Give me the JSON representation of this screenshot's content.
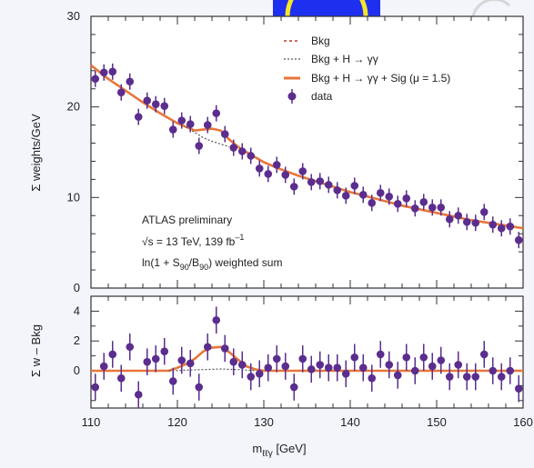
{
  "colors": {
    "data_marker": "#5b2d8e",
    "signal_fit": "#e8763a",
    "background_fit": "#c0392b",
    "higgs_fit": "#555555",
    "logo_blue": "#1f2ff0",
    "logo_yellow": "#f5e626"
  },
  "chart_data": [
    {
      "type": "scatter",
      "panel": "main",
      "ylabel": "Σ weights/GeV",
      "xlabel": "",
      "xlim": [
        110,
        160
      ],
      "ylim": [
        0,
        30
      ],
      "x_ticks": [
        "110",
        "120",
        "130",
        "140",
        "150",
        "160"
      ],
      "y_ticks": [
        "0",
        "10",
        "20",
        "30"
      ],
      "legend": {
        "placement": "top-right",
        "entries": [
          "Bkg",
          "Bkg + H → γγ",
          "Bkg + H → γγ + Sig (μ = 1.5)",
          "data"
        ]
      },
      "annotations": [
        "ATLAS preliminary",
        "√s = 13 TeV, 139 fb",
        "–1",
        "ln(1 + S",
        "90",
        "/B",
        "90",
        ") weighted sum"
      ],
      "series": [
        {
          "name": "data",
          "x": [
            110.5,
            111.5,
            112.5,
            113.5,
            114.5,
            115.5,
            116.5,
            117.5,
            118.5,
            119.5,
            120.5,
            121.5,
            122.5,
            123.5,
            124.5,
            125.5,
            126.5,
            127.5,
            128.5,
            129.5,
            130.5,
            131.5,
            132.5,
            133.5,
            134.5,
            135.5,
            136.5,
            137.5,
            138.5,
            139.5,
            140.5,
            141.5,
            142.5,
            143.5,
            144.5,
            145.5,
            146.5,
            147.5,
            148.5,
            149.5,
            150.5,
            151.5,
            152.5,
            153.5,
            154.5,
            155.5,
            156.5,
            157.5,
            158.5,
            159.5
          ],
          "y": [
            23.1,
            23.8,
            23.9,
            21.6,
            22.8,
            18.9,
            20.7,
            20.3,
            20.1,
            17.5,
            18.5,
            18.1,
            15.7,
            18.0,
            19.3,
            17.0,
            15.5,
            15.1,
            14.6,
            13.2,
            12.6,
            13.6,
            12.5,
            11.2,
            12.9,
            11.7,
            11.8,
            11.4,
            10.8,
            10.2,
            11.3,
            10.3,
            9.4,
            10.5,
            10.1,
            9.3,
            9.9,
            8.8,
            9.5,
            8.9,
            8.9,
            7.6,
            8.0,
            7.3,
            7.2,
            8.4,
            7.0,
            6.6,
            6.8,
            5.3
          ],
          "yerr": 0.9
        },
        {
          "name": "Bkg + H → γγ + Sig (μ = 1.5)",
          "x": [
            110,
            112,
            114,
            116,
            118,
            120,
            121,
            122,
            123,
            124,
            125,
            126,
            127,
            128,
            130,
            132,
            134,
            136,
            138,
            140,
            142,
            144,
            146,
            148,
            150,
            152,
            154,
            156,
            158,
            160
          ],
          "y": [
            24.6,
            23.1,
            21.8,
            20.5,
            19.3,
            18.2,
            17.8,
            17.4,
            17.5,
            17.6,
            17.4,
            16.4,
            15.6,
            15.0,
            13.9,
            13.1,
            12.4,
            11.8,
            11.2,
            10.6,
            10.1,
            9.6,
            9.1,
            8.7,
            8.3,
            7.9,
            7.5,
            7.2,
            6.9,
            6.6
          ]
        },
        {
          "name": "Bkg + H → γγ",
          "x": [
            121,
            122,
            123,
            124,
            125,
            126
          ],
          "y": [
            17.8,
            17.2,
            16.6,
            16.2,
            15.9,
            15.6
          ]
        }
      ]
    },
    {
      "type": "scatter",
      "panel": "residual",
      "ylabel": "Σ w – Bkg",
      "xlabel": "m",
      "xlabel_sub": "ℓℓγ",
      "xlabel_unit": " [GeV]",
      "xlim": [
        110,
        160
      ],
      "ylim": [
        -2.5,
        5
      ],
      "x_ticks": [
        "110",
        "120",
        "130",
        "140",
        "150",
        "160"
      ],
      "y_ticks": [
        "0",
        "2",
        "4"
      ],
      "series": [
        {
          "name": "data",
          "x": [
            110.5,
            111.5,
            112.5,
            113.5,
            114.5,
            115.5,
            116.5,
            117.5,
            118.5,
            119.5,
            120.5,
            121.5,
            122.5,
            123.5,
            124.5,
            125.5,
            126.5,
            127.5,
            128.5,
            129.5,
            130.5,
            131.5,
            132.5,
            133.5,
            134.5,
            135.5,
            136.5,
            137.5,
            138.5,
            139.5,
            140.5,
            141.5,
            142.5,
            143.5,
            144.5,
            145.5,
            146.5,
            147.5,
            148.5,
            149.5,
            150.5,
            151.5,
            152.5,
            153.5,
            154.5,
            155.5,
            156.5,
            157.5,
            158.5,
            159.5
          ],
          "y": [
            -1.1,
            0.3,
            1.1,
            -0.5,
            1.6,
            -1.6,
            0.6,
            0.8,
            1.3,
            -0.7,
            0.7,
            0.5,
            -1.1,
            1.6,
            3.4,
            1.5,
            0.6,
            0.4,
            -0.4,
            -0.2,
            0.2,
            0.8,
            0.3,
            -1.1,
            0.8,
            0.1,
            0.4,
            0.2,
            0.2,
            -0.2,
            0.9,
            0.2,
            -0.5,
            1.1,
            0.4,
            -0.3,
            0.9,
            0.0,
            0.9,
            0.3,
            0.7,
            -0.4,
            0.4,
            -0.4,
            -0.4,
            1.1,
            0.0,
            -0.4,
            0.0,
            -1.2
          ],
          "yerr": 0.9
        },
        {
          "name": "Bkg + H → γγ + Sig (μ = 1.5)",
          "x": [
            110,
            119,
            120,
            121,
            122,
            123,
            124,
            125,
            126,
            127,
            128,
            129,
            130,
            160
          ],
          "y": [
            0,
            0,
            0.2,
            0.45,
            0.8,
            1.3,
            1.55,
            1.6,
            1.25,
            0.75,
            0.3,
            0.1,
            0,
            0
          ]
        },
        {
          "name": "Bkg + H → γγ",
          "x": [
            119,
            120,
            121,
            122,
            123,
            124,
            125,
            126,
            127,
            128,
            129
          ],
          "y": [
            0,
            0.02,
            0.04,
            0.06,
            0.08,
            0.1,
            0.12,
            0.1,
            0.08,
            0.04,
            0.01
          ]
        }
      ]
    }
  ]
}
